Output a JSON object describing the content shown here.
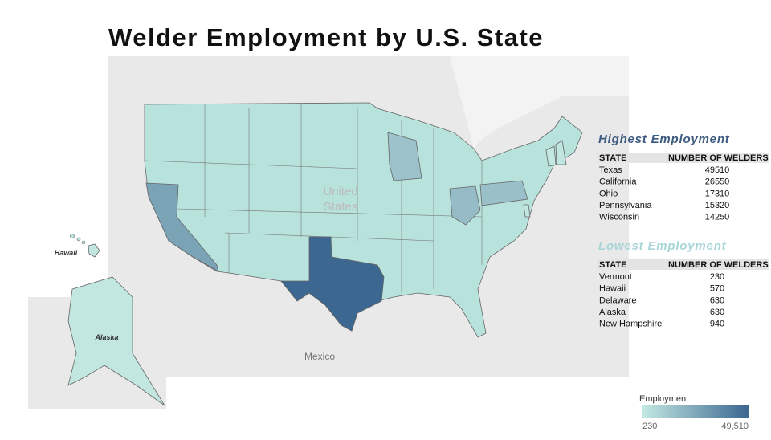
{
  "title": "Welder Employment by U.S. State",
  "map": {
    "country_label": [
      "United",
      "States"
    ],
    "mexico_label": "Mexico",
    "hawaii_label": "Hawaii",
    "alaska_label": "Alaska"
  },
  "highest": {
    "title": "Highest Employment",
    "columns": [
      "STATE",
      "NUMBER OF WELDERS"
    ],
    "rows": [
      [
        "Texas",
        49510
      ],
      [
        "California",
        26550
      ],
      [
        "Ohio",
        17310
      ],
      [
        "Pennsylvania",
        15320
      ],
      [
        "Wisconsin",
        14250
      ]
    ]
  },
  "lowest": {
    "title": "Lowest Employment",
    "columns": [
      "STATE",
      "NUMBER OF WELDERS"
    ],
    "rows": [
      [
        "Vermont",
        230
      ],
      [
        "Hawaii",
        570
      ],
      [
        "Delaware",
        630
      ],
      [
        "Alaska",
        630
      ],
      [
        "New Hampshire",
        940
      ]
    ]
  },
  "legend": {
    "title": "Employment",
    "min": 230,
    "max": {
      "value": 49510,
      "label": "49,510"
    },
    "colors": [
      "#c3e8e2",
      "#3b6790"
    ]
  }
}
